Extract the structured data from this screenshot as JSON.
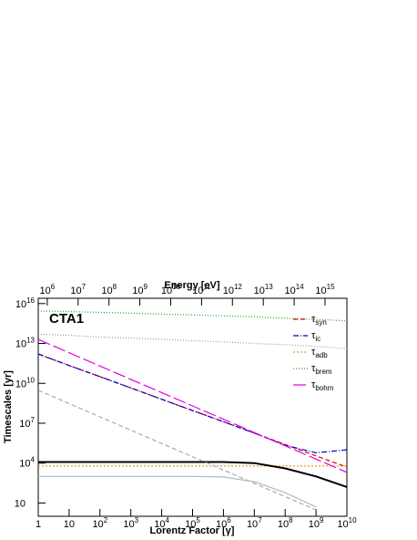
{
  "chart_data": {
    "type": "line",
    "title": "CTA1",
    "xlabel": "Lorentz Factor [γ]",
    "ylabel": "Timescales [yr]",
    "x2label": "Energy [eV]",
    "log_x": true,
    "log_y": true,
    "grid": false,
    "legend": "upper right",
    "x": [
      1,
      10,
      100,
      1000,
      10000,
      100000,
      1000000,
      10000000,
      100000000,
      1000000000,
      10000000000
    ],
    "xlim": [
      1,
      10000000000
    ],
    "xticks": [
      1,
      10,
      {
        "value": 100,
        "label": "10^2"
      },
      {
        "value": 1000,
        "label": "10^3"
      },
      {
        "value": 10000,
        "label": "10^4"
      },
      {
        "value": 100000,
        "label": "10^5"
      },
      {
        "value": 1000000,
        "label": "10^6"
      },
      {
        "value": 10000000,
        "label": "10^7"
      },
      {
        "value": 100000000,
        "label": "10^8"
      },
      {
        "value": 1000000000,
        "label": "10^9"
      },
      {
        "value": 10000000000,
        "label": "10^10"
      }
    ],
    "x2lim": [
      511000,
      5110000000000000
    ],
    "x2ticks": [
      {
        "value": 1000000,
        "label": "10^6"
      },
      {
        "value": 10000000,
        "label": "10^7"
      },
      {
        "value": 100000000,
        "label": "10^8"
      },
      {
        "value": 1000000000,
        "label": "10^9"
      },
      {
        "value": 10000000000,
        "label": "10^10"
      },
      {
        "value": 100000000000,
        "label": "10^11"
      },
      {
        "value": 1000000000000,
        "label": "10^12"
      },
      {
        "value": 10000000000000,
        "label": "10^13"
      },
      {
        "value": 100000000000000,
        "label": "10^14"
      },
      {
        "value": 1000000000000000,
        "label": "10^15"
      }
    ],
    "ylim": [
      1,
      25000000000000000
    ],
    "yticks": [
      10,
      {
        "value": 10000,
        "label": "10^4"
      },
      {
        "value": 10000000,
        "label": "10^7"
      },
      {
        "value": 10000000000,
        "label": "10^10"
      },
      {
        "value": 10000000000000,
        "label": "10^13"
      },
      {
        "value": 10000000000000000,
        "label": "10^16"
      }
    ],
    "series": [
      {
        "name": "τ_syn",
        "color": "#e00000",
        "dash": "5,3",
        "values": [
          1600000000000.0,
          220000000000.0,
          32000000000.0,
          4500000000.0,
          630000000.0,
          89000000.0,
          13000000.0,
          1800000.0,
          250000.0,
          35000.0,
          5000.0
        ]
      },
      {
        "name": "τ_ic",
        "color": "#0000cc",
        "dash": "6,2,1,2",
        "values": [
          1600000000000.0,
          220000000000.0,
          32000000000.0,
          4500000000.0,
          630000000.0,
          89000000.0,
          13000000.0,
          1800000.0,
          220000.0,
          60000.0,
          100000.0
        ]
      },
      {
        "name": "τ_adb",
        "color": "#e0a030",
        "dash": "2,2",
        "values": [
          6000.0,
          6000.0,
          6000.0,
          6000.0,
          6000.0,
          6000.0,
          6000.0,
          6000.0,
          6000.0,
          6000.0,
          6000.0
        ]
      },
      {
        "name": "τ_brem",
        "color": "#22aa22",
        "dash": "1,2",
        "values": [
          2800000000000000.0,
          2500000000000000.0,
          2200000000000000.0,
          1900000000000000.0,
          1600000000000000.0,
          1400000000000000.0,
          1200000000000000.0,
          1000000000000000.0,
          800000000000000.0,
          650000000000000.0,
          500000000000000.0
        ]
      },
      {
        "name": "τ_bohm",
        "color": "#e000e0",
        "dash": "14,4",
        "values": [
          20000000000000.0,
          2000000000000.0,
          200000000000.0,
          20000000000.0,
          2000000000.0,
          200000000.0,
          20000000.0,
          2000000.0,
          200000.0,
          20000.0,
          2000.0
        ]
      },
      {
        "color": "#000000",
        "width": 2,
        "values": [
          12000.0,
          12000.0,
          12000.0,
          12000.0,
          12000.0,
          12000.0,
          12000.0,
          10000.0,
          4000.0,
          1000.0,
          160
        ]
      },
      {
        "color": "#999999",
        "dash": "1,2",
        "values": [
          50000000000000.0,
          40000000000000.0,
          30000000000000.0,
          25000000000000.0,
          20000000000000.0,
          16000000000000.0,
          13000000000000.0,
          10000000000000.0,
          8000000000000.0,
          6000000000000.0,
          4000000000000.0
        ]
      },
      {
        "color": "#aaaaaa",
        "dash": "5,3",
        "values": [
          3000000000.0,
          300000000.0,
          30000000.0,
          3000000.0,
          300000.0,
          30000.0,
          3000.0,
          300,
          30,
          3,
          null
        ]
      },
      {
        "color": "#aabbcc",
        "values": [
          1000.0,
          1000.0,
          1000.0,
          1000.0,
          1000.0,
          1000.0,
          900,
          400,
          60,
          5,
          null
        ]
      }
    ]
  }
}
